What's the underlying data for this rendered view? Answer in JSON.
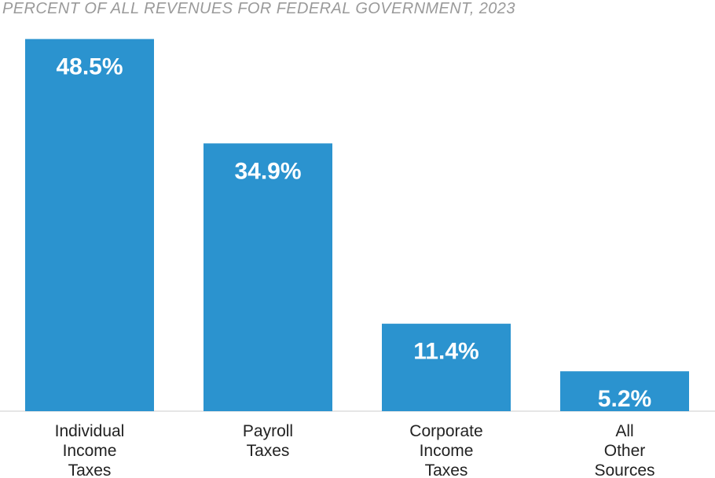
{
  "chart_data": {
    "type": "bar",
    "title": "PERCENT OF ALL REVENUES FOR FEDERAL GOVERNMENT, 2023",
    "xlabel": "",
    "ylabel": "",
    "ylim": [
      0,
      50
    ],
    "grid": false,
    "categories": [
      [
        "Individual",
        "Income",
        "Taxes"
      ],
      [
        "Payroll",
        "Taxes"
      ],
      [
        "Corporate",
        "Income",
        "Taxes"
      ],
      [
        "All",
        "Other",
        "Sources"
      ]
    ],
    "values": [
      48.5,
      34.9,
      11.4,
      5.2
    ],
    "value_labels": [
      "48.5%",
      "34.9%",
      "11.4%",
      "5.2%"
    ],
    "colors": {
      "bar": "#2b93cf",
      "title": "#9a9a9a",
      "value_label": "#ffffff",
      "category_label": "#222222",
      "baseline": "#e6e6e6"
    }
  }
}
